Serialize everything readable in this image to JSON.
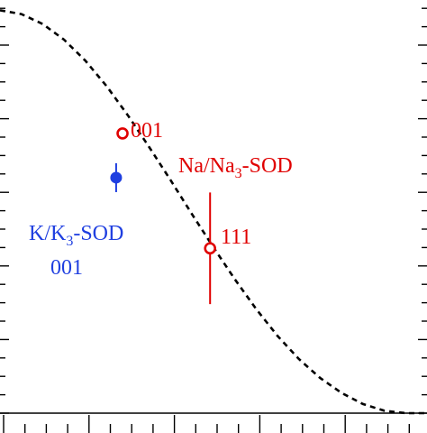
{
  "chart_data": {
    "type": "scatter",
    "title": "",
    "xlabel": "",
    "ylabel": "",
    "xlim": [
      0,
      1
    ],
    "ylim": [
      0,
      1
    ],
    "grid": false,
    "legend": "none",
    "curve": {
      "style": "dashed",
      "color": "#000000",
      "x": [
        0,
        0.05,
        0.1,
        0.15,
        0.2,
        0.25,
        0.3,
        0.35,
        0.4,
        0.45,
        0.5,
        0.55,
        0.6,
        0.65,
        0.7,
        0.75,
        0.8,
        0.85,
        0.9,
        0.95,
        1
      ],
      "y": [
        0.975,
        0.966,
        0.942,
        0.904,
        0.853,
        0.791,
        0.72,
        0.643,
        0.563,
        0.481,
        0.401,
        0.324,
        0.252,
        0.187,
        0.131,
        0.085,
        0.049,
        0.022,
        0.006,
        0.0,
        0.0
      ]
    },
    "series": [
      {
        "color": "#e00000",
        "marker": "open-circle",
        "points": [
          {
            "x": 0.287,
            "y": 0.677,
            "yerr": 0.01
          },
          {
            "x": 0.492,
            "y": 0.399,
            "yerr": 0.135
          }
        ]
      },
      {
        "color": "#1f3fe0",
        "marker": "filled-circle",
        "points": [
          {
            "x": 0.272,
            "y": 0.57,
            "yerr": 0.035
          }
        ]
      }
    ],
    "annotations": [
      {
        "id": "na-001",
        "color": "#e00000",
        "parts": [
          {
            "t": "001"
          }
        ]
      },
      {
        "id": "na-sod",
        "color": "#e00000",
        "parts": [
          {
            "t": "Na/Na"
          },
          {
            "t": "3",
            "sub": true
          },
          {
            "t": "-SOD"
          }
        ]
      },
      {
        "id": "na-111",
        "color": "#e00000",
        "parts": [
          {
            "t": "111"
          }
        ]
      },
      {
        "id": "k-sod",
        "color": "#1f3fe0",
        "parts": [
          {
            "t": "K/K"
          },
          {
            "t": "3",
            "sub": true
          },
          {
            "t": "-SOD"
          }
        ]
      },
      {
        "id": "k-001",
        "color": "#1f3fe0",
        "parts": [
          {
            "t": "001"
          }
        ]
      }
    ]
  }
}
